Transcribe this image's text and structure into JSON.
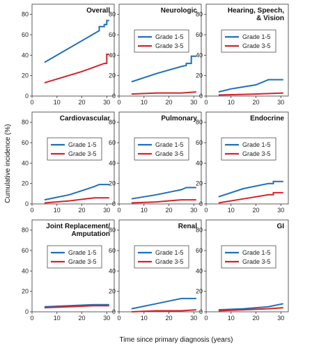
{
  "figure": {
    "ylabel": "Cumulative incidence (%)",
    "xlabel": "Time since primary diagnosis (years)"
  },
  "colors": {
    "grade15": "#1f6fb5",
    "grade35": "#d2232a"
  },
  "chart_data": [
    {
      "type": "line",
      "title": [
        "Overall"
      ],
      "xlim": [
        0,
        33
      ],
      "ylim": [
        0,
        90
      ],
      "xticks": [
        "0",
        "10",
        "20",
        "30"
      ],
      "yticks": [
        "0",
        "20",
        "40",
        "60",
        "80"
      ],
      "legend": "none",
      "series": [
        {
          "name": "Grade 1-5",
          "x": [
            5,
            27,
            27,
            29,
            29,
            30,
            30,
            31
          ],
          "y": [
            33,
            64,
            68,
            68,
            70,
            70,
            74,
            74
          ]
        },
        {
          "name": "Grade 3-5",
          "x": [
            5,
            20,
            28,
            29,
            30,
            30,
            31
          ],
          "y": [
            13,
            24,
            31,
            32,
            32,
            41,
            41
          ]
        }
      ]
    },
    {
      "type": "line",
      "title": [
        "Neurologic"
      ],
      "xlim": [
        0,
        33
      ],
      "ylim": [
        0,
        90
      ],
      "xticks": [
        "0",
        "10",
        "20",
        "30"
      ],
      "yticks": [
        "0",
        "20",
        "40",
        "60",
        "80"
      ],
      "legend": "middle-right",
      "series": [
        {
          "name": "Grade 1-5",
          "x": [
            5,
            15,
            25,
            27,
            27,
            29,
            29,
            31
          ],
          "y": [
            14,
            22,
            29,
            30,
            32,
            32,
            39,
            39
          ]
        },
        {
          "name": "Grade 3-5",
          "x": [
            5,
            15,
            25,
            31
          ],
          "y": [
            2,
            3,
            3,
            4
          ]
        }
      ]
    },
    {
      "type": "line",
      "title": [
        "Hearing, Speech,",
        "& Vision"
      ],
      "xlim": [
        0,
        33
      ],
      "ylim": [
        0,
        90
      ],
      "xticks": [
        "0",
        "10",
        "20",
        "30"
      ],
      "yticks": [
        "0",
        "20",
        "40",
        "60",
        "80"
      ],
      "legend": "middle-right",
      "series": [
        {
          "name": "Grade 1-5",
          "x": [
            5,
            10,
            20,
            25,
            31
          ],
          "y": [
            4,
            7,
            11,
            16,
            16
          ]
        },
        {
          "name": "Grade 3-5",
          "x": [
            5,
            20,
            31
          ],
          "y": [
            1,
            2,
            3
          ]
        }
      ]
    },
    {
      "type": "line",
      "title": [
        "Cardiovascular"
      ],
      "xlim": [
        0,
        33
      ],
      "ylim": [
        0,
        90
      ],
      "xticks": [
        "0",
        "10",
        "20",
        "30"
      ],
      "yticks": [
        "0",
        "20",
        "40",
        "60",
        "80"
      ],
      "legend": "middle-right",
      "series": [
        {
          "name": "Grade 1-5",
          "x": [
            5,
            15,
            25,
            27,
            31
          ],
          "y": [
            4,
            9,
            17,
            19,
            19
          ]
        },
        {
          "name": "Grade 3-5",
          "x": [
            5,
            15,
            25,
            31
          ],
          "y": [
            1,
            3,
            6,
            6
          ]
        }
      ]
    },
    {
      "type": "line",
      "title": [
        "Pulmonary"
      ],
      "xlim": [
        0,
        33
      ],
      "ylim": [
        0,
        90
      ],
      "xticks": [
        "0",
        "10",
        "20",
        "30"
      ],
      "yticks": [
        "0",
        "20",
        "40",
        "60",
        "80"
      ],
      "legend": "middle-right",
      "series": [
        {
          "name": "Grade 1-5",
          "x": [
            5,
            15,
            25,
            27,
            31
          ],
          "y": [
            5,
            9,
            14,
            16,
            16
          ]
        },
        {
          "name": "Grade 3-5",
          "x": [
            5,
            15,
            25,
            31
          ],
          "y": [
            1,
            2,
            4,
            4
          ]
        }
      ]
    },
    {
      "type": "line",
      "title": [
        "Endocrine"
      ],
      "xlim": [
        0,
        33
      ],
      "ylim": [
        0,
        90
      ],
      "xticks": [
        "0",
        "10",
        "20",
        "30"
      ],
      "yticks": [
        "0",
        "20",
        "40",
        "60",
        "80"
      ],
      "legend": "middle-right",
      "series": [
        {
          "name": "Grade 1-5",
          "x": [
            5,
            15,
            25,
            27,
            27,
            31
          ],
          "y": [
            7,
            15,
            20,
            20,
            22,
            22
          ]
        },
        {
          "name": "Grade 3-5",
          "x": [
            5,
            15,
            25,
            27,
            27,
            31
          ],
          "y": [
            1,
            5,
            9,
            9,
            11,
            11
          ]
        }
      ]
    },
    {
      "type": "line",
      "title": [
        "Joint Replacement/",
        "Amputation"
      ],
      "xlim": [
        0,
        33
      ],
      "ylim": [
        0,
        90
      ],
      "xticks": [
        "0",
        "10",
        "20",
        "30"
      ],
      "yticks": [
        "0",
        "20",
        "40",
        "60",
        "80"
      ],
      "legend": "middle-right",
      "series": [
        {
          "name": "Grade 1-5",
          "x": [
            5,
            15,
            25,
            31
          ],
          "y": [
            5,
            6,
            7,
            7
          ]
        },
        {
          "name": "Grade 3-5",
          "x": [
            5,
            15,
            25,
            31
          ],
          "y": [
            4,
            5,
            6,
            6
          ]
        }
      ]
    },
    {
      "type": "line",
      "title": [
        "Renal"
      ],
      "xlim": [
        0,
        33
      ],
      "ylim": [
        0,
        90
      ],
      "xticks": [
        "0",
        "10",
        "20",
        "30"
      ],
      "yticks": [
        "0",
        "20",
        "40",
        "60",
        "80"
      ],
      "legend": "middle-right",
      "series": [
        {
          "name": "Grade 1-5",
          "x": [
            5,
            15,
            25,
            31
          ],
          "y": [
            3,
            8,
            13,
            13
          ]
        },
        {
          "name": "Grade 3-5",
          "x": [
            5,
            15,
            25,
            31
          ],
          "y": [
            0,
            1,
            1,
            2
          ]
        }
      ]
    },
    {
      "type": "line",
      "title": [
        "GI"
      ],
      "xlim": [
        0,
        33
      ],
      "ylim": [
        0,
        90
      ],
      "xticks": [
        "0",
        "10",
        "20",
        "30"
      ],
      "yticks": [
        "0",
        "20",
        "40",
        "60",
        "80"
      ],
      "legend": "middle-right",
      "series": [
        {
          "name": "Grade 1-5",
          "x": [
            5,
            15,
            25,
            31
          ],
          "y": [
            2,
            3,
            5,
            8
          ]
        },
        {
          "name": "Grade 3-5",
          "x": [
            5,
            15,
            25,
            31
          ],
          "y": [
            1,
            2,
            3,
            4
          ]
        }
      ]
    }
  ]
}
